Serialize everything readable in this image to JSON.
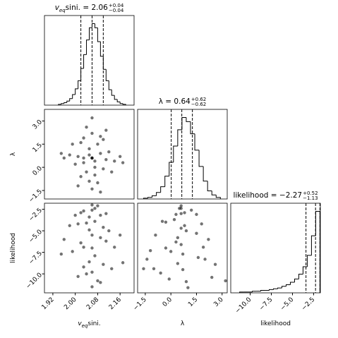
{
  "chart_data": [
    {
      "type": "histogram",
      "title_symbol": "v",
      "title_symbol_sub": "eq",
      "title": "sini. = 2.06",
      "title_plus": "+0.04",
      "title_minus": "−0.04",
      "bins": [
        1.94,
        1.95,
        1.96,
        1.97,
        1.98,
        1.99,
        2.0,
        2.01,
        2.02,
        2.03,
        2.04,
        2.05,
        2.06,
        2.07,
        2.08,
        2.09,
        2.1,
        2.11,
        2.12,
        2.13,
        2.14,
        2.15,
        2.16,
        2.17,
        2.18
      ],
      "values": [
        1,
        2,
        3,
        5,
        8,
        13,
        20,
        30,
        45,
        62,
        80,
        95,
        100,
        95,
        78,
        60,
        44,
        30,
        19,
        12,
        7,
        4,
        2,
        1
      ],
      "quantiles": [
        2.02,
        2.06,
        2.1
      ],
      "xlim": [
        1.89,
        2.21
      ],
      "ylim": [
        0,
        110
      ]
    },
    {
      "type": "scatter",
      "x": [
        2.06,
        2.03,
        2.09,
        2.05,
        2.07,
        2.01,
        2.11,
        2.04,
        2.08,
        2.06,
        2.02,
        2.1,
        2.0,
        2.12,
        1.98,
        2.14,
        2.06,
        2.05,
        2.07,
        2.03,
        2.09,
        1.96,
        2.16,
        2.06,
        2.04,
        2.08,
        2.02,
        2.1,
        1.99,
        2.13,
        2.06,
        2.07,
        2.05,
        2.01,
        2.11,
        1.95,
        2.17,
        2.06,
        2.03,
        2.09
      ],
      "y": [
        0.6,
        0.3,
        0.9,
        1.2,
        0.0,
        0.7,
        0.5,
        -0.3,
        1.5,
        0.6,
        1.6,
        -0.1,
        0.2,
        1.0,
        0.8,
        0.4,
        2.2,
        -0.9,
        -0.5,
        1.9,
        2.0,
        0.6,
        0.7,
        -1.4,
        2.6,
        -1.0,
        -0.6,
        1.8,
        1.5,
        -0.3,
        0.6,
        0.4,
        0.8,
        -1.2,
        2.4,
        0.9,
        0.3,
        3.2,
        0.6,
        -1.6
      ],
      "xlim": [
        1.89,
        2.21
      ],
      "ylim": [
        -2.05,
        3.75
      ],
      "yticks": [
        {
          "value": -1.5,
          "label": "−1.5"
        },
        {
          "value": 0,
          "label": "0.0"
        },
        1.5,
        {
          "value": 3,
          "label": "3.0"
        }
      ],
      "ylabel": "λ"
    },
    {
      "type": "histogram",
      "title": "λ = 0.64",
      "title_plus": "+0.62",
      "title_minus": "−0.62",
      "bins": [
        -1.6,
        -1.35,
        -1.1,
        -0.85,
        -0.6,
        -0.35,
        -0.1,
        0.15,
        0.4,
        0.65,
        0.9,
        1.15,
        1.4,
        1.65,
        1.9,
        2.15,
        2.4,
        2.65,
        2.9
      ],
      "values": [
        1,
        2,
        4,
        8,
        15,
        28,
        45,
        65,
        85,
        100,
        95,
        80,
        60,
        40,
        22,
        10,
        5,
        2
      ],
      "quantiles": [
        0.02,
        0.64,
        1.26
      ],
      "xlim": [
        -1.95,
        3.3
      ],
      "ylim": [
        0,
        110
      ]
    },
    {
      "type": "scatter",
      "x": [
        2.06,
        2.03,
        2.09,
        2.05,
        2.07,
        2.01,
        2.11,
        2.04,
        2.08,
        2.06,
        2.02,
        2.1,
        2.0,
        2.12,
        1.98,
        2.14,
        2.06,
        2.05,
        2.07,
        2.03,
        2.09,
        1.96,
        2.16,
        2.06,
        2.04,
        2.08,
        2.02,
        2.1,
        1.99,
        2.13,
        2.06,
        2.07,
        2.05,
        2.01,
        2.11,
        1.95,
        2.17,
        2.06,
        2.03,
        2.09
      ],
      "y": [
        -2.0,
        -2.7,
        -3.2,
        -4.9,
        -7.9,
        -4.2,
        -3.0,
        -10.0,
        -2.1,
        -5.5,
        -6.4,
        -8.9,
        -3.2,
        -5.0,
        -4.4,
        -6.9,
        -11.5,
        -3.4,
        -2.4,
        -9.2,
        -5.8,
        -6.0,
        -5.5,
        -7.0,
        -4.1,
        -10.8,
        -2.9,
        -4.6,
        -7.4,
        -9.4,
        -2.6,
        -3.9,
        -8.6,
        -10.3,
        -6.2,
        -7.7,
        -8.7,
        -9.8,
        -6.9,
        -11.0
      ],
      "xlim": [
        1.89,
        2.21
      ],
      "ylim": [
        -12.2,
        -1.8
      ],
      "xticks": [
        1.92,
        {
          "value": 2,
          "label": "2.00"
        },
        2.08,
        2.16
      ],
      "xlabel_symbol": "v",
      "xlabel_symbol_sub": "eq",
      "xlabel": "sini.",
      "yticks": [
        {
          "value": -10,
          "label": "−10.0"
        },
        {
          "value": -7.5,
          "label": "−7.5"
        },
        {
          "value": -5,
          "label": "−5.0"
        },
        {
          "value": -2.5,
          "label": "−2.5"
        }
      ],
      "ylabel": "likelihood"
    },
    {
      "type": "scatter",
      "x": [
        0.6,
        0.3,
        0.9,
        1.2,
        0.0,
        0.7,
        0.5,
        -0.3,
        1.5,
        0.6,
        1.6,
        -0.1,
        0.2,
        1.0,
        0.8,
        0.4,
        2.2,
        -0.9,
        -0.5,
        1.9,
        2.0,
        0.6,
        0.7,
        -1.4,
        2.6,
        -1.0,
        -0.6,
        1.8,
        1.5,
        -0.3,
        0.6,
        0.4,
        0.8,
        -1.2,
        2.4,
        0.9,
        0.3,
        3.2,
        0.6,
        -1.6
      ],
      "y": [
        -2.1,
        -3.1,
        -5.0,
        -2.6,
        -7.4,
        -9.5,
        -2.4,
        -4.0,
        -3.1,
        -6.6,
        -8.1,
        -10.6,
        -3.7,
        -11.6,
        -4.4,
        -5.8,
        -6.0,
        -5.5,
        -3.9,
        -6.9,
        -8.3,
        -3.0,
        -7.7,
        -8.3,
        -8.9,
        -9.4,
        -9.9,
        -4.2,
        -5.3,
        -7.0,
        -2.4,
        -8.8,
        -2.9,
        -7.3,
        -10.4,
        -10.9,
        -6.3,
        -10.8,
        -4.7,
        -9.4
      ],
      "xlim": [
        -1.95,
        3.3
      ],
      "ylim": [
        -12.2,
        -1.8
      ],
      "xticks": [
        {
          "value": -1.5,
          "label": "−1.5"
        },
        {
          "value": 0,
          "label": "0.0"
        },
        1.5,
        {
          "value": 3,
          "label": "3.0"
        }
      ],
      "xlabel": "λ"
    },
    {
      "type": "histogram",
      "title": "likelihood = −2.27",
      "title_plus": "+0.52",
      "title_minus": "−1.13",
      "bins": [
        -11.25,
        -10.75,
        -10.25,
        -9.75,
        -9.25,
        -8.75,
        -8.25,
        -7.75,
        -7.25,
        -6.75,
        -6.25,
        -5.75,
        -5.25,
        -4.75,
        -4.25,
        -3.75,
        -3.25,
        -2.75,
        -2.25,
        -1.75
      ],
      "values": [
        1,
        1,
        1,
        2,
        2,
        3,
        3,
        4,
        5,
        6,
        8,
        10,
        13,
        17,
        23,
        32,
        46,
        70,
        100
      ],
      "quantiles": [
        -3.4,
        -2.27,
        -1.75
      ],
      "xlim": [
        -12.3,
        -1.7
      ],
      "ylim": [
        0,
        110
      ],
      "xticks": [
        {
          "value": -10,
          "label": "−10.0"
        },
        {
          "value": -7.5,
          "label": "−7.5"
        },
        {
          "value": -5,
          "label": "−5.0"
        },
        {
          "value": -2.5,
          "label": "−2.5"
        }
      ],
      "xlabel": "likelihood"
    }
  ]
}
